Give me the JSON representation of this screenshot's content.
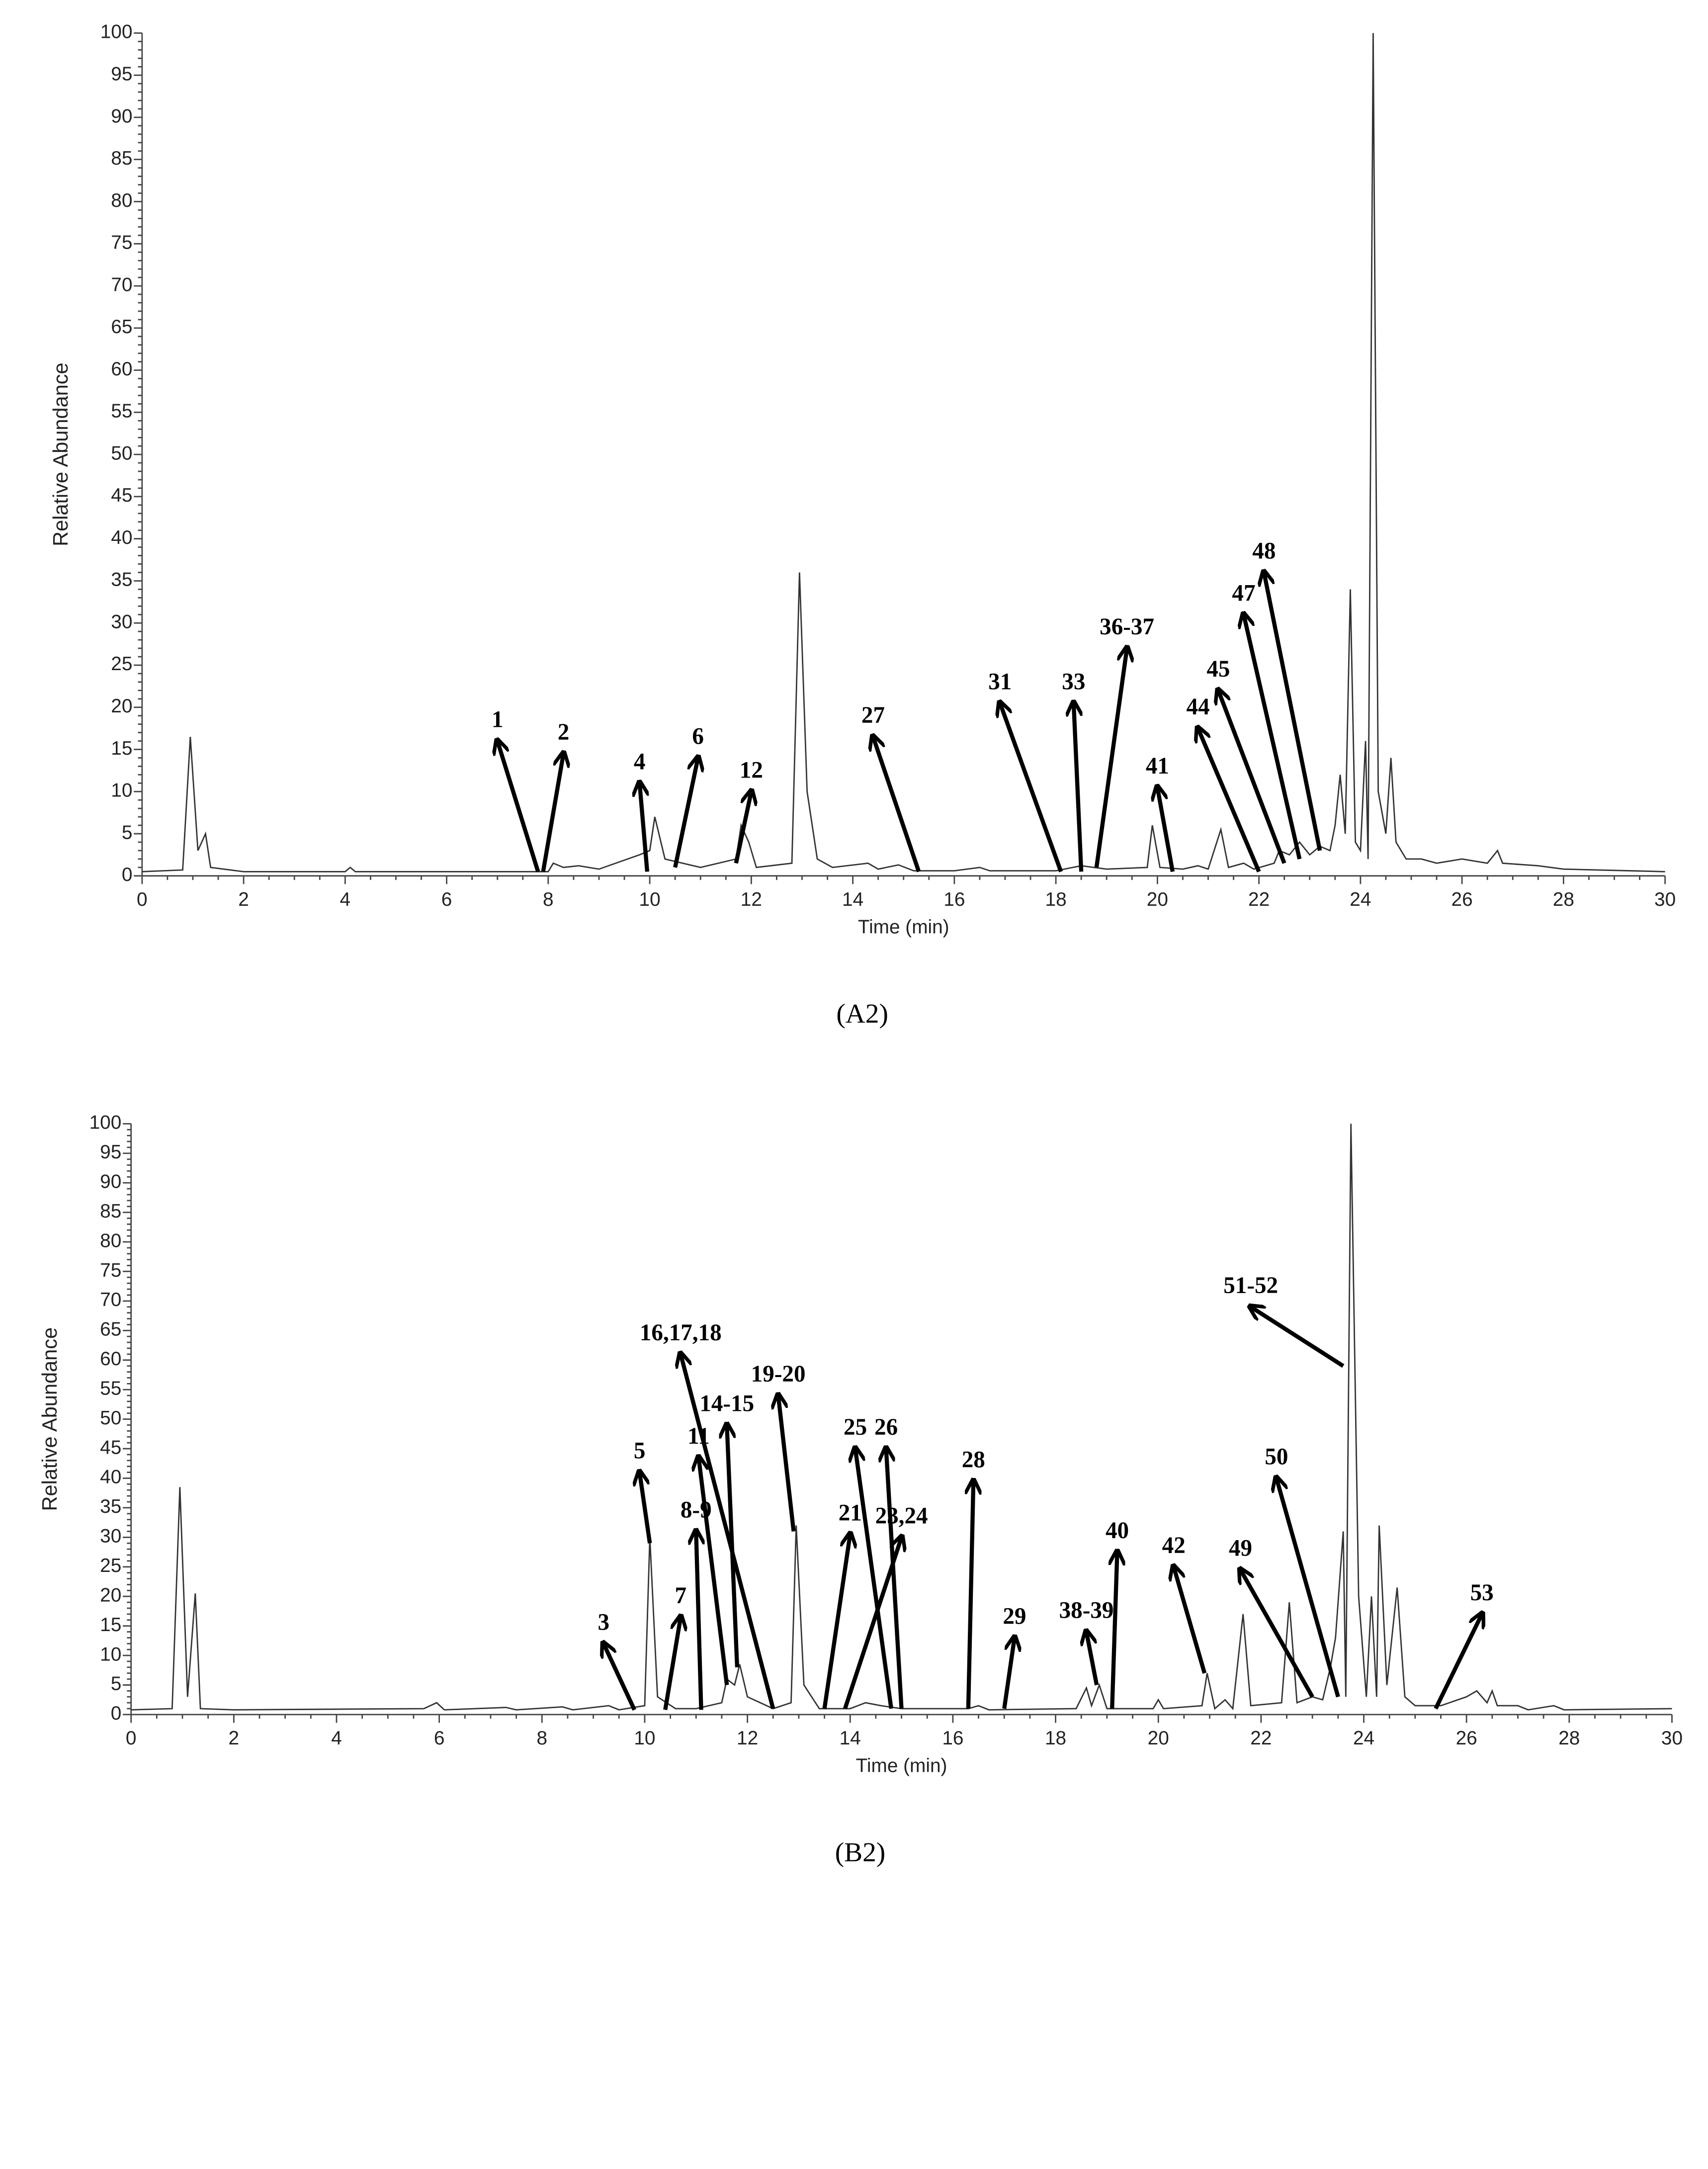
{
  "chart_data": [
    {
      "type": "line",
      "caption": "(A2)",
      "x_label": "Time (min)",
      "y_label": "Relative Abundance",
      "color": "#333333",
      "xlim": [
        0,
        30
      ],
      "ylim": [
        0,
        100
      ],
      "xticks": [
        0,
        2,
        4,
        6,
        8,
        10,
        12,
        14,
        16,
        18,
        20,
        22,
        24,
        26,
        28,
        30
      ],
      "yticks": [
        0,
        5,
        10,
        15,
        20,
        25,
        30,
        35,
        40,
        45,
        50,
        55,
        60,
        65,
        70,
        75,
        80,
        85,
        90,
        95,
        100
      ],
      "x": [
        0,
        0.8,
        0.95,
        1.1,
        1.25,
        1.35,
        2,
        4,
        4.1,
        4.2,
        8,
        8.1,
        8.3,
        8.6,
        9,
        9.8,
        10,
        10.1,
        10.3,
        11,
        11.7,
        11.8,
        11.95,
        12.1,
        12.8,
        12.95,
        13.1,
        13.3,
        13.6,
        14.3,
        14.5,
        14.9,
        15.2,
        16,
        16.5,
        16.7,
        18,
        18.5,
        19,
        19.8,
        19.9,
        20.05,
        20.5,
        20.8,
        21,
        21.25,
        21.4,
        21.7,
        21.9,
        22.3,
        22.4,
        22.6,
        22.8,
        23,
        23.2,
        23.4,
        23.5,
        23.6,
        23.7,
        23.8,
        23.9,
        24.0,
        24.1,
        24.15,
        24.25,
        24.35,
        24.5,
        24.6,
        24.7,
        24.9,
        25.2,
        25.5,
        26,
        26.5,
        26.7,
        26.8,
        27.5,
        28,
        30
      ],
      "values": [
        0.5,
        0.7,
        16.5,
        3,
        5,
        1,
        0.5,
        0.5,
        1,
        0.5,
        0.5,
        1.5,
        1,
        1.2,
        0.8,
        2.5,
        3,
        7,
        2,
        1,
        2,
        6,
        4,
        1,
        1.5,
        36,
        10,
        2,
        1,
        1.5,
        0.8,
        1.3,
        0.6,
        0.6,
        1,
        0.6,
        0.6,
        1.2,
        0.8,
        1,
        6,
        1,
        0.8,
        1.2,
        0.8,
        5.5,
        1,
        1.5,
        0.8,
        1.5,
        3,
        2.5,
        4,
        2.5,
        3.5,
        3,
        6,
        12,
        5,
        34,
        4,
        3,
        16,
        2,
        100,
        10,
        5,
        14,
        4,
        2,
        2,
        1.5,
        2,
        1.5,
        3,
        1.5,
        1.2,
        0.8,
        0.5
      ],
      "annotations": [
        {
          "text": "1",
          "x": 7.8,
          "y": 0.5,
          "xytext": [
            7.0,
            16
          ]
        },
        {
          "text": "2",
          "x": 7.9,
          "y": 0.5,
          "xytext": [
            8.3,
            14.5
          ]
        },
        {
          "text": "4",
          "x": 9.95,
          "y": 0.5,
          "xytext": [
            9.8,
            11
          ]
        },
        {
          "text": "6",
          "x": 10.5,
          "y": 1,
          "xytext": [
            10.95,
            14
          ]
        },
        {
          "text": "12",
          "x": 11.7,
          "y": 1.5,
          "xytext": [
            12.0,
            10
          ]
        },
        {
          "text": "27",
          "x": 15.3,
          "y": 0.5,
          "xytext": [
            14.4,
            16.5
          ]
        },
        {
          "text": "31",
          "x": 18.1,
          "y": 0.5,
          "xytext": [
            16.9,
            20.5
          ]
        },
        {
          "text": "33",
          "x": 18.5,
          "y": 0.5,
          "xytext": [
            18.35,
            20.5
          ]
        },
        {
          "text": "36-37",
          "x": 18.8,
          "y": 1,
          "xytext": [
            19.4,
            27
          ]
        },
        {
          "text": "41",
          "x": 20.3,
          "y": 0.5,
          "xytext": [
            20.0,
            10.5
          ]
        },
        {
          "text": "44",
          "x": 22.0,
          "y": 0.5,
          "xytext": [
            20.8,
            17.5
          ]
        },
        {
          "text": "45",
          "x": 22.5,
          "y": 1.5,
          "xytext": [
            21.2,
            22
          ]
        },
        {
          "text": "47",
          "x": 22.8,
          "y": 2,
          "xytext": [
            21.7,
            31
          ]
        },
        {
          "text": "48",
          "x": 23.2,
          "y": 3,
          "xytext": [
            22.1,
            36
          ]
        }
      ]
    },
    {
      "type": "line",
      "caption": "(B2)",
      "x_label": "Time (min)",
      "y_label": "Relative Abundance",
      "color": "#333333",
      "xlim": [
        0,
        30
      ],
      "ylim": [
        0,
        100
      ],
      "xticks": [
        0,
        2,
        4,
        6,
        8,
        10,
        12,
        14,
        16,
        18,
        20,
        22,
        24,
        26,
        28,
        30
      ],
      "yticks": [
        0,
        5,
        10,
        15,
        20,
        25,
        30,
        35,
        40,
        45,
        50,
        55,
        60,
        65,
        70,
        75,
        80,
        85,
        90,
        95,
        100
      ],
      "x": [
        0,
        0.8,
        0.95,
        1.1,
        1.25,
        1.35,
        2,
        5.7,
        5.95,
        6.1,
        7.3,
        7.5,
        8.4,
        8.6,
        9.3,
        9.5,
        10.0,
        10.1,
        10.25,
        10.6,
        11.0,
        11.5,
        11.6,
        11.75,
        11.85,
        12.0,
        12.5,
        12.85,
        12.95,
        13.1,
        13.4,
        14.0,
        14.3,
        14.6,
        15.0,
        16.3,
        16.5,
        16.7,
        18.4,
        18.6,
        18.7,
        18.85,
        19.0,
        19.9,
        20.0,
        20.1,
        20.85,
        20.95,
        21.1,
        21.3,
        21.45,
        21.65,
        21.8,
        22.4,
        22.55,
        22.7,
        23.0,
        23.2,
        23.35,
        23.45,
        23.6,
        23.65,
        23.75,
        23.9,
        24.05,
        24.15,
        24.25,
        24.3,
        24.45,
        24.65,
        24.8,
        25.0,
        25.5,
        26.0,
        26.2,
        26.4,
        26.5,
        26.6,
        27.0,
        27.2,
        27.7,
        27.9,
        30
      ],
      "values": [
        0.8,
        1,
        38.5,
        3,
        20.5,
        1,
        0.8,
        1,
        2,
        0.8,
        1.2,
        0.8,
        1.3,
        0.8,
        1.5,
        0.8,
        1.5,
        30,
        3,
        1,
        1,
        2,
        6,
        5,
        8.5,
        3,
        1,
        2,
        32,
        5,
        1,
        1,
        2,
        1.5,
        1,
        1,
        1.5,
        0.8,
        1,
        4.5,
        1.5,
        5,
        1,
        1,
        2.5,
        1,
        1.5,
        7,
        1,
        2.5,
        1,
        17,
        1.5,
        2,
        19,
        2,
        3,
        2.5,
        8,
        13,
        31,
        3,
        100,
        20,
        3,
        20,
        3,
        32,
        5,
        21.5,
        3,
        1.5,
        1.5,
        3,
        4,
        2,
        4,
        1.5,
        1.5,
        0.8,
        1.5,
        0.8,
        1
      ],
      "annotations": [
        {
          "text": "3",
          "x": 9.8,
          "y": 0.8,
          "xytext": [
            9.2,
            12
          ]
        },
        {
          "text": "5",
          "x": 10.1,
          "y": 29,
          "xytext": [
            9.9,
            41
          ]
        },
        {
          "text": "7",
          "x": 10.4,
          "y": 0.8,
          "xytext": [
            10.7,
            16.5
          ]
        },
        {
          "text": "8-9",
          "x": 11.1,
          "y": 0.8,
          "xytext": [
            11.0,
            31
          ]
        },
        {
          "text": "11",
          "x": 11.6,
          "y": 5,
          "xytext": [
            11.05,
            43.5
          ]
        },
        {
          "text": "14-15",
          "x": 11.8,
          "y": 8,
          "xytext": [
            11.6,
            49
          ]
        },
        {
          "text": "16,17,18",
          "x": 12.5,
          "y": 1,
          "xytext": [
            10.7,
            61
          ]
        },
        {
          "text": "19-20",
          "x": 12.9,
          "y": 31,
          "xytext": [
            12.6,
            54
          ]
        },
        {
          "text": "21",
          "x": 13.5,
          "y": 1,
          "xytext": [
            14.0,
            30.5
          ]
        },
        {
          "text": "23,24",
          "x": 13.9,
          "y": 1,
          "xytext": [
            15.0,
            30
          ]
        },
        {
          "text": "25",
          "x": 14.8,
          "y": 1,
          "xytext": [
            14.1,
            45
          ]
        },
        {
          "text": "26",
          "x": 15.0,
          "y": 1,
          "xytext": [
            14.7,
            45
          ]
        },
        {
          "text": "28",
          "x": 16.3,
          "y": 1,
          "xytext": [
            16.4,
            39.5
          ]
        },
        {
          "text": "29",
          "x": 17.0,
          "y": 1,
          "xytext": [
            17.2,
            13
          ]
        },
        {
          "text": "38-39",
          "x": 18.8,
          "y": 5,
          "xytext": [
            18.6,
            14
          ]
        },
        {
          "text": "40",
          "x": 19.1,
          "y": 1,
          "xytext": [
            19.2,
            27.5
          ]
        },
        {
          "text": "42",
          "x": 20.9,
          "y": 7,
          "xytext": [
            20.3,
            25
          ]
        },
        {
          "text": "49",
          "x": 23.0,
          "y": 3,
          "xytext": [
            21.6,
            24.5
          ]
        },
        {
          "text": "50",
          "x": 23.5,
          "y": 3,
          "xytext": [
            22.3,
            40
          ]
        },
        {
          "text": "51-52",
          "x": 23.6,
          "y": 59,
          "xytext": [
            21.8,
            69
          ]
        },
        {
          "text": "53",
          "x": 25.4,
          "y": 1,
          "xytext": [
            26.3,
            17
          ]
        }
      ]
    }
  ]
}
